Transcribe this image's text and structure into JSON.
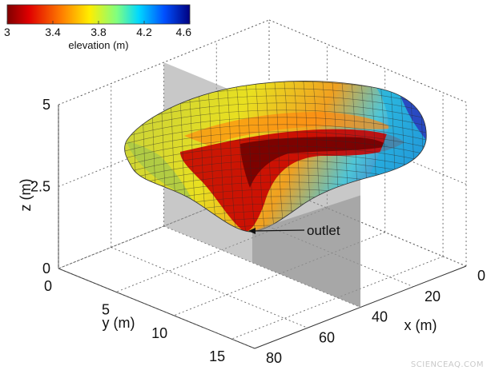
{
  "watermark": "SCIENCEAQ.COM",
  "chart_data": {
    "type": "surface3d",
    "colorbar": {
      "label": "elevation (m)",
      "ticks": [
        "3",
        "3.4",
        "3.8",
        "4.2",
        "4.6"
      ],
      "range": [
        3,
        4.6
      ],
      "colormap": "jet"
    },
    "axes": {
      "x": {
        "label": "x (m)",
        "ticks": [
          "0",
          "20",
          "40",
          "60",
          "80"
        ],
        "range": [
          0,
          80
        ]
      },
      "y": {
        "label": "y (m)",
        "ticks": [
          "0",
          "5",
          "10",
          "15"
        ],
        "range": [
          0,
          17
        ]
      },
      "z": {
        "label": "z (m)",
        "ticks": [
          "0",
          "2.5",
          "5"
        ],
        "range": [
          0,
          5
        ]
      }
    },
    "grid": true,
    "slice_plane": {
      "x": 40
    },
    "annotation": {
      "text": "outlet",
      "x": 40,
      "y": 8,
      "z": 0.9
    }
  }
}
